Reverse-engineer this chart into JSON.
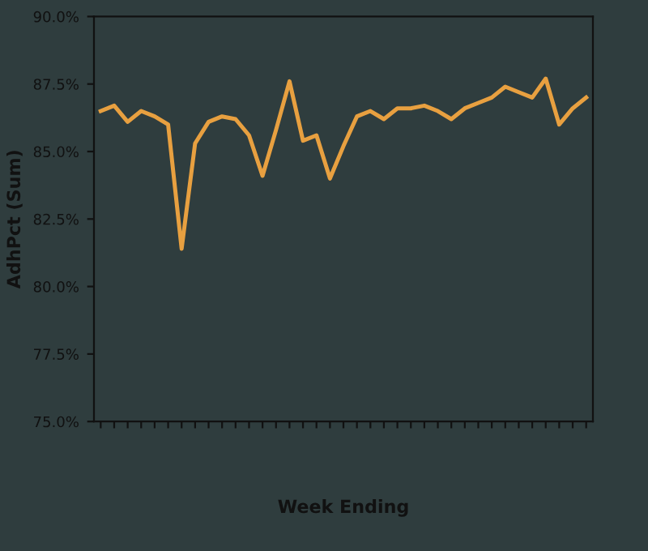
{
  "chart_data": {
    "type": "line",
    "xlabel": "Week Ending",
    "ylabel": "AdhPct (Sum)",
    "categories": [
      null,
      null,
      null,
      null,
      null,
      null,
      null,
      null,
      null,
      null,
      null,
      null,
      null,
      null,
      null,
      null,
      null,
      null,
      null,
      null,
      null,
      null,
      null,
      null,
      null,
      null,
      null,
      null,
      null,
      null,
      null,
      null,
      null,
      null,
      null,
      null,
      null
    ],
    "series": [
      {
        "color": "#e8a040",
        "values": [
          86.5,
          86.7,
          86.1,
          86.5,
          86.3,
          86.0,
          81.4,
          85.3,
          86.1,
          86.3,
          86.2,
          85.6,
          84.1,
          85.8,
          87.6,
          85.4,
          85.6,
          84.0,
          85.2,
          86.3,
          86.5,
          86.2,
          86.6,
          86.6,
          86.7,
          86.5,
          86.2,
          86.6,
          86.8,
          87.0,
          87.4,
          87.2,
          87.0,
          87.7,
          86.0,
          86.6,
          87.0
        ]
      }
    ],
    "ylim": [
      75,
      90
    ],
    "yticks": [
      {
        "value": 75,
        "label": "75.0%"
      },
      {
        "value": 77.5,
        "label": "77.5%"
      },
      {
        "value": 80,
        "label": "80.0%"
      },
      {
        "value": 82.5,
        "label": "82.5%"
      },
      {
        "value": 85,
        "label": "85.0%"
      },
      {
        "value": 87.5,
        "label": "87.5%"
      },
      {
        "value": 90,
        "label": "90.0%"
      }
    ],
    "grid": false,
    "marker": "none",
    "line_style": "solid"
  }
}
